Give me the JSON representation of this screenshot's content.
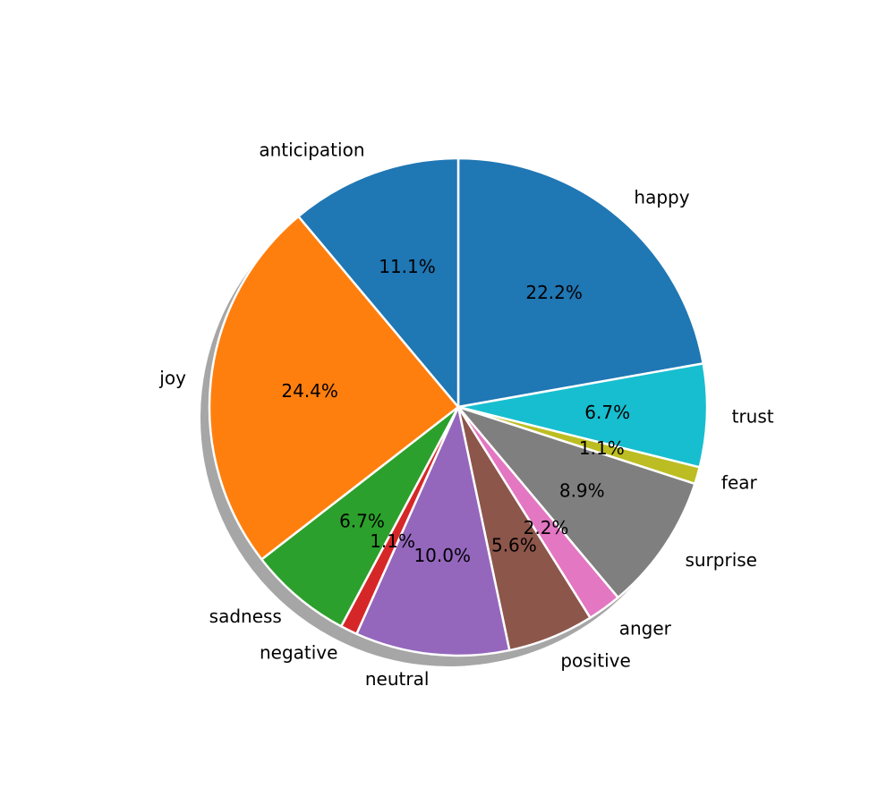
{
  "chart_data": {
    "type": "pie",
    "shadow": true,
    "start_angle_deg": 90,
    "direction": "clockwise",
    "slices": [
      {
        "label": "happy",
        "value": 22.2,
        "pct_label": "22.2%",
        "color": "#1f77b4"
      },
      {
        "label": "trust",
        "value": 6.7,
        "pct_label": "6.7%",
        "color": "#17becf"
      },
      {
        "label": "fear",
        "value": 1.1,
        "pct_label": "1.1%",
        "color": "#bcbd22"
      },
      {
        "label": "surprise",
        "value": 8.9,
        "pct_label": "8.9%",
        "color": "#7f7f7f"
      },
      {
        "label": "anger",
        "value": 2.2,
        "pct_label": "2.2%",
        "color": "#e377c2"
      },
      {
        "label": "positive",
        "value": 5.6,
        "pct_label": "5.6%",
        "color": "#8c564b"
      },
      {
        "label": "neutral",
        "value": 10.0,
        "pct_label": "10.0%",
        "color": "#9467bd"
      },
      {
        "label": "negative",
        "value": 1.1,
        "pct_label": "1.1%",
        "color": "#d62728"
      },
      {
        "label": "sadness",
        "value": 6.7,
        "pct_label": "6.7%",
        "color": "#2ca02c"
      },
      {
        "label": "joy",
        "value": 24.4,
        "pct_label": "24.4%",
        "color": "#ff7f0e"
      },
      {
        "label": "anticipation",
        "value": 11.1,
        "pct_label": "11.1%",
        "color": "#1f77b4"
      }
    ]
  }
}
